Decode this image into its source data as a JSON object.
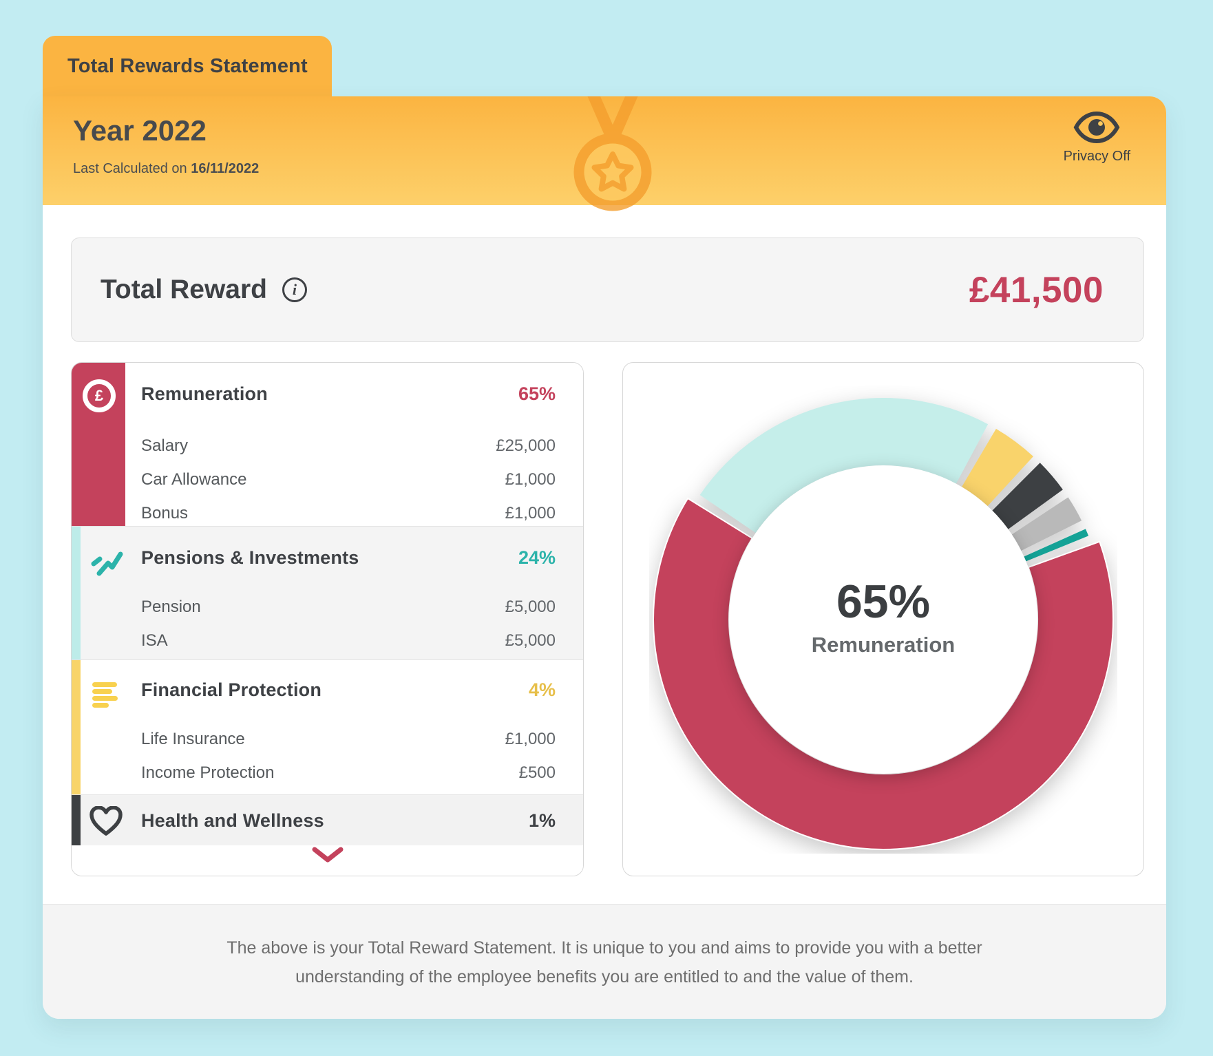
{
  "tab": {
    "title": "Total Rewards Statement"
  },
  "header": {
    "year_title": "Year 2022",
    "last_calculated_label": "Last Calculated on ",
    "last_calculated_date": "16/11/2022",
    "privacy_label": "Privacy Off"
  },
  "total_reward": {
    "label": "Total Reward",
    "amount": "£41,500"
  },
  "categories": [
    {
      "name": "Remuneration",
      "percent": "65%",
      "color": "#c4425c",
      "stripe": "#c4425c",
      "icon": "pound-circle",
      "items": [
        {
          "label": "Salary",
          "value": "£25,000"
        },
        {
          "label": "Car Allowance",
          "value": "£1,000"
        },
        {
          "label": "Bonus",
          "value": "£1,000"
        }
      ]
    },
    {
      "name": "Pensions & Investments",
      "percent": "24%",
      "color": "#2cb3aa",
      "stripe": "#bdece9",
      "icon": "trend-zigzag",
      "items": [
        {
          "label": "Pension",
          "value": "£5,000"
        },
        {
          "label": "ISA",
          "value": "£5,000"
        }
      ]
    },
    {
      "name": "Financial Protection",
      "percent": "4%",
      "color": "#e7bf4a",
      "stripe": "#f8d469",
      "icon": "stacked-cash",
      "items": [
        {
          "label": "Life Insurance",
          "value": "£1,000"
        },
        {
          "label": "Income Protection",
          "value": "£500"
        }
      ]
    },
    {
      "name": "Health and Wellness",
      "percent": "1%",
      "color": "#3e4145",
      "stripe": "#3d4043",
      "icon": "heart",
      "items": []
    }
  ],
  "chart_data": {
    "type": "donut",
    "center_value": "65%",
    "center_label": "Remuneration",
    "start_angle_deg": 69,
    "gap_deg": 2.4,
    "segments": [
      {
        "name": "Remuneration",
        "display_percent": 65,
        "arc_percent": 65,
        "color": "#c4425c",
        "pop": true
      },
      {
        "name": "Pensions & Investments",
        "display_percent": 24,
        "arc_percent": 24,
        "color": "#c5eeea"
      },
      {
        "name": "Financial Protection",
        "display_percent": 4,
        "arc_percent": 4,
        "color": "#f9d36b"
      },
      {
        "name": "Health and Wellness",
        "display_percent": 1,
        "arc_percent": 3.2,
        "color": "#3d4043"
      },
      {
        "name": "unlabeled-gray",
        "arc_percent": 2.6,
        "color": "#b9b9b9"
      },
      {
        "name": "unlabeled-teal",
        "arc_percent": 1.2,
        "color": "#14a296"
      }
    ]
  },
  "footer": {
    "text": "The above is your Total Reward Statement. It is unique to you and aims to provide you with a better understanding of the employee benefits you are entitled to and the value of them."
  }
}
